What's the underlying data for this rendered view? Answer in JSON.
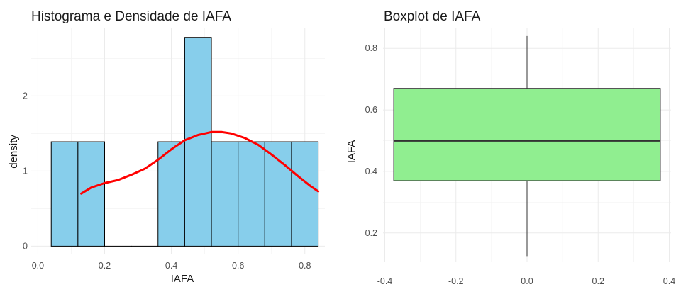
{
  "chart_data": [
    {
      "type": "histogram",
      "title": "Histograma e Densidade de IAFA",
      "xlabel": "IAFA",
      "ylabel": "density",
      "xlim": [
        -0.02,
        0.86
      ],
      "ylim": [
        -0.1,
        2.9
      ],
      "x_ticks": [
        0.0,
        0.2,
        0.4,
        0.6,
        0.8
      ],
      "x_tick_labels": [
        "0.0",
        "0.2",
        "0.4",
        "0.6",
        "0.8"
      ],
      "y_ticks": [
        0,
        1,
        2
      ],
      "y_tick_labels": [
        "0",
        "1",
        "2"
      ],
      "grid": true,
      "bar_fill": "#87CEEB",
      "bar_stroke": "#000000",
      "bins": [
        {
          "x0": 0.04,
          "x1": 0.12,
          "density": 1.39
        },
        {
          "x0": 0.12,
          "x1": 0.2,
          "density": 1.39
        },
        {
          "x0": 0.2,
          "x1": 0.28,
          "density": 0
        },
        {
          "x0": 0.28,
          "x1": 0.36,
          "density": 0
        },
        {
          "x0": 0.36,
          "x1": 0.44,
          "density": 1.39
        },
        {
          "x0": 0.44,
          "x1": 0.52,
          "density": 2.78
        },
        {
          "x0": 0.52,
          "x1": 0.6,
          "density": 1.39
        },
        {
          "x0": 0.6,
          "x1": 0.68,
          "density": 1.39
        },
        {
          "x0": 0.68,
          "x1": 0.76,
          "density": 1.39
        },
        {
          "x0": 0.76,
          "x1": 0.84,
          "density": 1.39
        }
      ],
      "density_line": {
        "color": "#FF0000",
        "x": [
          0.13,
          0.16,
          0.2,
          0.24,
          0.28,
          0.32,
          0.36,
          0.4,
          0.44,
          0.48,
          0.52,
          0.55,
          0.58,
          0.62,
          0.66,
          0.7,
          0.74,
          0.78,
          0.82,
          0.84
        ],
        "y": [
          0.7,
          0.78,
          0.84,
          0.88,
          0.95,
          1.03,
          1.15,
          1.29,
          1.41,
          1.48,
          1.52,
          1.52,
          1.5,
          1.44,
          1.35,
          1.22,
          1.08,
          0.93,
          0.79,
          0.73
        ]
      }
    },
    {
      "type": "boxplot",
      "title": "Boxplot de IAFA",
      "xlabel": "",
      "ylabel": "IAFA",
      "xlim": [
        -0.405,
        0.405
      ],
      "ylim": [
        0.105,
        0.865
      ],
      "x_ticks": [
        -0.4,
        -0.2,
        0.0,
        0.2,
        0.4
      ],
      "x_tick_labels": [
        "-0.4",
        "-0.2",
        "0.0",
        "0.2",
        "0.4"
      ],
      "y_ticks": [
        0.2,
        0.4,
        0.6,
        0.8
      ],
      "y_tick_labels": [
        "0.2",
        "0.4",
        "0.6",
        "0.8"
      ],
      "grid": true,
      "box_fill": "#90EE90",
      "box_stroke": "#333333",
      "box": {
        "x_min": -0.375,
        "x_max": 0.375,
        "lower_whisker": 0.125,
        "q1": 0.37,
        "median": 0.5,
        "q3": 0.67,
        "upper_whisker": 0.84
      }
    }
  ]
}
